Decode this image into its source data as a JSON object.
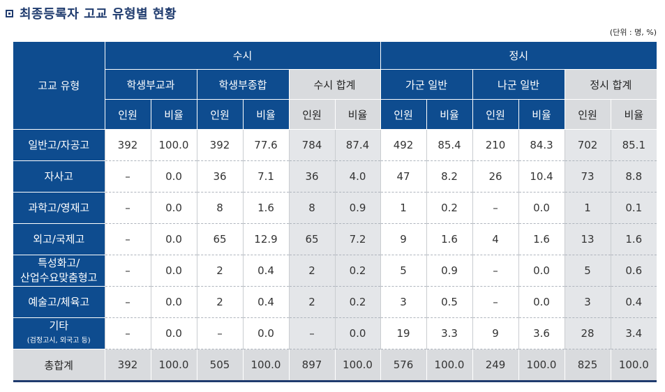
{
  "title": "최종등록자 고교 유형별 현황",
  "unit": "(단위 : 명, %)",
  "header": {
    "row_header": "고교 유형",
    "group_susi": "수시",
    "group_jeongsi": "정시",
    "sub": [
      "학생부교과",
      "학생부종합",
      "수시 합계",
      "가군 일반",
      "나군 일반",
      "정시 합계"
    ],
    "count": "인원",
    "ratio": "비율"
  },
  "rows": [
    {
      "label": "일반고/자공고",
      "values": [
        "392",
        "100.0",
        "392",
        "77.6",
        "784",
        "87.4",
        "492",
        "85.4",
        "210",
        "84.3",
        "702",
        "85.1"
      ]
    },
    {
      "label": "자사고",
      "values": [
        "–",
        "0.0",
        "36",
        "7.1",
        "36",
        "4.0",
        "47",
        "8.2",
        "26",
        "10.4",
        "73",
        "8.8"
      ]
    },
    {
      "label": "과학고/영재고",
      "values": [
        "–",
        "0.0",
        "8",
        "1.6",
        "8",
        "0.9",
        "1",
        "0.2",
        "–",
        "0.0",
        "1",
        "0.1"
      ]
    },
    {
      "label": "외고/국제고",
      "values": [
        "–",
        "0.0",
        "65",
        "12.9",
        "65",
        "7.2",
        "9",
        "1.6",
        "4",
        "1.6",
        "13",
        "1.6"
      ]
    },
    {
      "label_line1": "특성화고/",
      "label_line2": "산업수요맞춤형고",
      "values": [
        "–",
        "0.0",
        "2",
        "0.4",
        "2",
        "0.2",
        "5",
        "0.9",
        "–",
        "0.0",
        "5",
        "0.6"
      ]
    },
    {
      "label": "예술고/체육고",
      "values": [
        "–",
        "0.0",
        "2",
        "0.4",
        "2",
        "0.2",
        "3",
        "0.5",
        "–",
        "0.0",
        "3",
        "0.4"
      ]
    },
    {
      "label_line1": "기타",
      "label_line2": "(검정고시, 외국고 등)",
      "values": [
        "–",
        "0.0",
        "–",
        "0.0",
        "–",
        "0.0",
        "19",
        "3.3",
        "9",
        "3.6",
        "28",
        "3.4"
      ]
    }
  ],
  "total": {
    "label": "총합계",
    "values": [
      "392",
      "100.0",
      "505",
      "100.0",
      "897",
      "100.0",
      "576",
      "100.0",
      "249",
      "100.0",
      "825",
      "100.0"
    ]
  }
}
